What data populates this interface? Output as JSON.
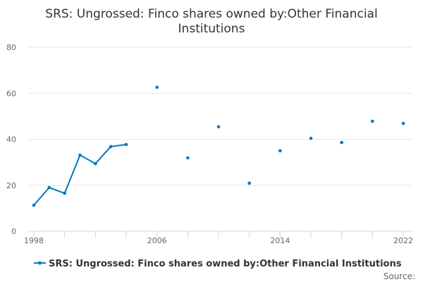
{
  "chart_data": {
    "type": "line",
    "title": [
      "SRS: Ungrossed: Finco shares owned by:Other Financial",
      "Institutions"
    ],
    "xlabel": "",
    "ylabel": "",
    "ylim": [
      0,
      80
    ],
    "yticks": [
      0,
      20,
      40,
      60,
      80
    ],
    "xlim": [
      1998,
      2022
    ],
    "xtick_labels": [
      "1998",
      "2006",
      "2014",
      "2022"
    ],
    "xtick_marks": [
      1998,
      2000,
      2002,
      2004,
      2006,
      2008,
      2010,
      2012,
      2014,
      2016,
      2018,
      2020,
      2022
    ],
    "grid": true,
    "legend_position": "bottom",
    "series": [
      {
        "name": "SRS: Ungrossed: Finco shares owned by:Other Financial Institutions",
        "color": "#0077c0",
        "x": [
          1998,
          1999,
          2000,
          2001,
          2002,
          2003,
          2004,
          2005,
          2006,
          2007,
          2008,
          2009,
          2010,
          2011,
          2012,
          2013,
          2014,
          2015,
          2016,
          2017,
          2018,
          2019,
          2020,
          2021,
          2022
        ],
        "values": [
          11.3,
          19.0,
          16.5,
          33.1,
          29.4,
          36.8,
          37.7,
          null,
          62.6,
          null,
          31.9,
          null,
          45.4,
          null,
          20.9,
          null,
          35.0,
          null,
          40.4,
          null,
          38.6,
          null,
          47.8,
          null,
          46.9
        ]
      }
    ],
    "source_label": "Source:"
  }
}
